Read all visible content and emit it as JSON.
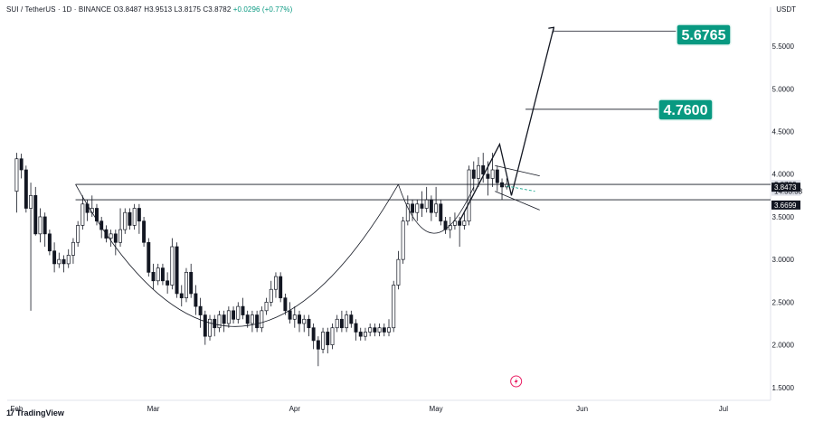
{
  "header": {
    "symbol": "SUI / TetherUS · 1D · BINANCE",
    "open": "O3.8487",
    "high": "H3.9513",
    "low": "L3.8175",
    "close": "C3.8782",
    "change": "+0.0296 (+0.77%)"
  },
  "unit": "USDT",
  "brand": "TradingView",
  "chart_data": {
    "type": "candlestick",
    "y_ticks": [
      "5.5000",
      "5.0000",
      "4.5000",
      "4.0000",
      "3.5000",
      "3.0000",
      "2.5000",
      "2.0000",
      "1.5000"
    ],
    "y_tick_values": [
      5.5,
      5.0,
      4.5,
      4.0,
      3.5,
      3.0,
      2.5,
      2.0,
      1.5
    ],
    "ylim": [
      1.35,
      5.85
    ],
    "x_ticks": [
      "Feb",
      "Mar",
      "Apr",
      "May",
      "Jun",
      "Jul"
    ],
    "x_tick_days": [
      0,
      29,
      59,
      89,
      120,
      150
    ],
    "xlim": [
      -2,
      160
    ],
    "price_labels": [
      {
        "text": "3.8782",
        "value": 3.8782,
        "kind": "last"
      },
      {
        "text": "14:33:33",
        "value": 3.8,
        "kind": "countdown"
      },
      {
        "text": "3.8473",
        "value": 3.8473,
        "kind": "line"
      },
      {
        "text": "3.6699",
        "value": 3.6699,
        "kind": "line"
      }
    ],
    "targets": [
      {
        "text": "5.6765",
        "value": 5.6765
      },
      {
        "text": "4.7600",
        "value": 4.76
      }
    ],
    "levels": [
      3.88,
      3.7
    ],
    "candles": [
      [
        0,
        3.8,
        4.18,
        4.25,
        3.55
      ],
      [
        1,
        4.18,
        4.05,
        4.24,
        3.95
      ],
      [
        2,
        4.05,
        3.6,
        4.1,
        3.55
      ],
      [
        3,
        3.6,
        3.75,
        3.9,
        2.4
      ],
      [
        4,
        3.75,
        3.3,
        3.85,
        3.28
      ],
      [
        5,
        3.3,
        3.5,
        3.6,
        3.2
      ],
      [
        6,
        3.5,
        3.3,
        3.55,
        3.15
      ],
      [
        7,
        3.3,
        3.1,
        3.35,
        3.05
      ],
      [
        8,
        3.1,
        2.95,
        3.2,
        2.85
      ],
      [
        9,
        2.95,
        3.0,
        3.08,
        2.9
      ],
      [
        10,
        3.0,
        2.95,
        3.05,
        2.85
      ],
      [
        11,
        2.95,
        3.05,
        3.12,
        2.9
      ],
      [
        12,
        3.05,
        3.2,
        3.25,
        2.95
      ],
      [
        13,
        3.2,
        3.4,
        3.45,
        3.15
      ],
      [
        14,
        3.4,
        3.65,
        3.75,
        3.35
      ],
      [
        15,
        3.65,
        3.55,
        3.7,
        3.45
      ],
      [
        16,
        3.55,
        3.6,
        3.75,
        3.5
      ],
      [
        17,
        3.6,
        3.45,
        3.65,
        3.4
      ],
      [
        18,
        3.45,
        3.35,
        3.5,
        3.25
      ],
      [
        19,
        3.35,
        3.25,
        3.4,
        3.2
      ],
      [
        20,
        3.25,
        3.3,
        3.35,
        3.15
      ],
      [
        21,
        3.3,
        3.2,
        3.35,
        3.05
      ],
      [
        22,
        3.2,
        3.35,
        3.6,
        3.15
      ],
      [
        23,
        3.35,
        3.55,
        3.6,
        3.3
      ],
      [
        24,
        3.55,
        3.4,
        3.6,
        3.35
      ],
      [
        25,
        3.4,
        3.6,
        3.65,
        3.35
      ],
      [
        26,
        3.6,
        3.45,
        3.65,
        3.3
      ],
      [
        27,
        3.45,
        3.2,
        3.5,
        3.15
      ],
      [
        28,
        3.2,
        2.85,
        3.25,
        2.8
      ],
      [
        29,
        2.85,
        2.75,
        2.95,
        2.65
      ],
      [
        30,
        2.75,
        2.9,
        2.95,
        2.7
      ],
      [
        31,
        2.9,
        2.75,
        2.95,
        2.7
      ],
      [
        32,
        2.75,
        2.7,
        2.85,
        2.6
      ],
      [
        33,
        2.7,
        3.15,
        3.25,
        2.65
      ],
      [
        34,
        3.15,
        2.6,
        3.2,
        2.55
      ],
      [
        35,
        2.6,
        2.55,
        2.7,
        2.45
      ],
      [
        36,
        2.55,
        2.85,
        2.9,
        2.5
      ],
      [
        37,
        2.85,
        2.6,
        2.95,
        2.55
      ],
      [
        38,
        2.6,
        2.45,
        2.7,
        2.35
      ],
      [
        39,
        2.45,
        2.35,
        2.55,
        2.2
      ],
      [
        40,
        2.35,
        2.1,
        2.4,
        2.0
      ],
      [
        41,
        2.1,
        2.3,
        2.35,
        2.05
      ],
      [
        42,
        2.3,
        2.2,
        2.35,
        2.1
      ],
      [
        43,
        2.2,
        2.35,
        2.4,
        2.15
      ],
      [
        44,
        2.35,
        2.25,
        2.4,
        2.15
      ],
      [
        45,
        2.25,
        2.4,
        2.45,
        2.2
      ],
      [
        46,
        2.4,
        2.3,
        2.45,
        2.25
      ],
      [
        47,
        2.3,
        2.45,
        2.5,
        2.25
      ],
      [
        48,
        2.45,
        2.35,
        2.55,
        2.3
      ],
      [
        49,
        2.35,
        2.25,
        2.4,
        2.2
      ],
      [
        50,
        2.25,
        2.35,
        2.4,
        2.15
      ],
      [
        51,
        2.35,
        2.2,
        2.4,
        2.15
      ],
      [
        52,
        2.2,
        2.4,
        2.45,
        2.15
      ],
      [
        53,
        2.4,
        2.5,
        2.55,
        2.35
      ],
      [
        54,
        2.5,
        2.65,
        2.75,
        2.45
      ],
      [
        55,
        2.65,
        2.8,
        2.85,
        2.55
      ],
      [
        56,
        2.8,
        2.55,
        2.85,
        2.5
      ],
      [
        57,
        2.55,
        2.4,
        2.6,
        2.35
      ],
      [
        58,
        2.4,
        2.3,
        2.5,
        2.25
      ],
      [
        59,
        2.3,
        2.35,
        2.45,
        2.2
      ],
      [
        60,
        2.35,
        2.25,
        2.4,
        2.15
      ],
      [
        61,
        2.25,
        2.3,
        2.35,
        2.15
      ],
      [
        62,
        2.3,
        2.2,
        2.35,
        2.1
      ],
      [
        63,
        2.2,
        2.05,
        2.25,
        1.95
      ],
      [
        64,
        2.05,
        1.95,
        2.1,
        1.75
      ],
      [
        65,
        1.95,
        2.15,
        2.2,
        1.9
      ],
      [
        66,
        2.15,
        2.0,
        2.2,
        1.9
      ],
      [
        67,
        2.0,
        2.2,
        2.25,
        1.95
      ],
      [
        68,
        2.2,
        2.3,
        2.35,
        2.15
      ],
      [
        69,
        2.3,
        2.2,
        2.4,
        2.15
      ],
      [
        70,
        2.2,
        2.35,
        2.4,
        2.15
      ],
      [
        71,
        2.35,
        2.25,
        2.4,
        2.2
      ],
      [
        72,
        2.25,
        2.15,
        2.3,
        2.05
      ],
      [
        73,
        2.15,
        2.1,
        2.2,
        2.05
      ],
      [
        74,
        2.1,
        2.15,
        2.2,
        2.05
      ],
      [
        75,
        2.15,
        2.2,
        2.25,
        2.1
      ],
      [
        76,
        2.2,
        2.15,
        2.25,
        2.1
      ],
      [
        77,
        2.15,
        2.2,
        2.25,
        2.1
      ],
      [
        78,
        2.2,
        2.15,
        2.25,
        2.1
      ],
      [
        79,
        2.15,
        2.2,
        2.3,
        2.1
      ],
      [
        80,
        2.2,
        2.7,
        2.75,
        2.15
      ],
      [
        81,
        2.7,
        3.0,
        3.1,
        2.65
      ],
      [
        82,
        3.0,
        3.45,
        3.5,
        2.95
      ],
      [
        83,
        3.45,
        3.65,
        3.75,
        3.4
      ],
      [
        84,
        3.65,
        3.55,
        3.7,
        3.45
      ],
      [
        85,
        3.55,
        3.65,
        3.7,
        3.45
      ],
      [
        86,
        3.65,
        3.6,
        3.8,
        3.5
      ],
      [
        87,
        3.6,
        3.7,
        3.85,
        3.55
      ],
      [
        88,
        3.7,
        3.55,
        3.75,
        3.45
      ],
      [
        89,
        3.55,
        3.65,
        3.85,
        3.5
      ],
      [
        90,
        3.65,
        3.45,
        3.7,
        3.4
      ],
      [
        91,
        3.45,
        3.35,
        3.5,
        3.3
      ],
      [
        92,
        3.35,
        3.4,
        3.5,
        3.25
      ],
      [
        93,
        3.4,
        3.45,
        3.55,
        3.35
      ],
      [
        94,
        3.45,
        3.4,
        3.5,
        3.15
      ],
      [
        95,
        3.4,
        3.45,
        3.55,
        3.35
      ],
      [
        96,
        3.45,
        4.05,
        4.1,
        3.4
      ],
      [
        97,
        4.05,
        3.95,
        4.15,
        3.8
      ],
      [
        98,
        3.95,
        4.1,
        4.2,
        3.85
      ],
      [
        99,
        4.1,
        4.0,
        4.25,
        3.9
      ],
      [
        100,
        4.0,
        3.95,
        4.15,
        3.75
      ],
      [
        101,
        3.95,
        4.05,
        4.25,
        3.85
      ],
      [
        102,
        4.05,
        3.9,
        4.1,
        3.8
      ],
      [
        103,
        3.9,
        3.85,
        3.95,
        3.7
      ],
      [
        104,
        3.85,
        3.88,
        3.95,
        3.82
      ]
    ]
  }
}
